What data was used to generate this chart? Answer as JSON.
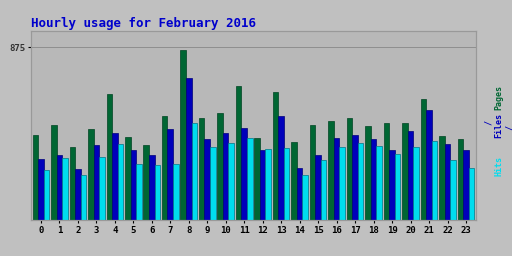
{
  "title": "Hourly usage for February 2016",
  "title_color": "#0000cc",
  "title_fontsize": 9,
  "plot_bg_color": "#b8b8b8",
  "ytick": 875,
  "hours": [
    0,
    1,
    2,
    3,
    4,
    5,
    6,
    7,
    8,
    9,
    10,
    11,
    12,
    13,
    14,
    15,
    16,
    17,
    18,
    19,
    20,
    21,
    22,
    23
  ],
  "pages": [
    430,
    480,
    370,
    460,
    640,
    420,
    380,
    530,
    860,
    520,
    545,
    680,
    415,
    650,
    395,
    480,
    505,
    520,
    475,
    490,
    490,
    615,
    425,
    410
  ],
  "files": [
    310,
    330,
    260,
    380,
    440,
    355,
    330,
    460,
    720,
    410,
    440,
    465,
    355,
    530,
    265,
    330,
    415,
    430,
    410,
    355,
    450,
    560,
    385,
    355
  ],
  "hits": [
    255,
    315,
    230,
    320,
    385,
    285,
    280,
    285,
    490,
    370,
    390,
    415,
    360,
    365,
    230,
    305,
    370,
    390,
    375,
    335,
    370,
    400,
    305,
    265
  ],
  "color_pages": "#006633",
  "color_files": "#0000bb",
  "color_hits": "#00ddee",
  "bar_width": 0.3,
  "ylim": [
    0,
    960
  ],
  "fig_bg": "#c0c0c0",
  "border_color": "#999999"
}
